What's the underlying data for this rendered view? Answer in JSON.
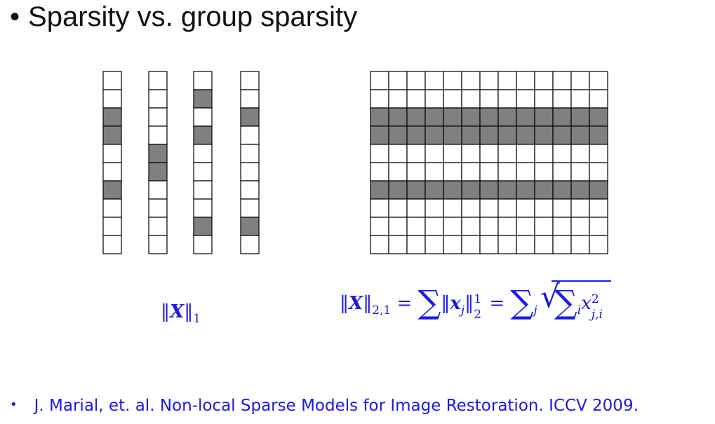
{
  "title": {
    "bullet": "•",
    "text": "Sparsity vs. group sparsity"
  },
  "diagram": {
    "columns": [
      {
        "rows": 10,
        "filled": [
          2,
          3,
          6
        ]
      },
      {
        "rows": 10,
        "filled": [
          4,
          5
        ]
      },
      {
        "rows": 10,
        "filled": [
          1,
          3,
          8
        ]
      },
      {
        "rows": 10,
        "filled": [
          2,
          8
        ]
      }
    ],
    "matrix": {
      "rows": 10,
      "cols": 13,
      "filled_rows": [
        2,
        3,
        6
      ]
    },
    "fill_color": "#808080",
    "line_color": "#000000",
    "empty_color": "#ffffff"
  },
  "formulas": {
    "l1": {
      "norm_open": "‖",
      "var": "X",
      "norm_close": "‖",
      "sub": "1"
    },
    "l21": {
      "norm_open": "‖",
      "var": "X",
      "norm_close": "‖",
      "sub": "2,1",
      "eq1": "=",
      "sum1": "∑",
      "xj_open": "‖",
      "xj_var": "x",
      "xj_sub": "j",
      "xj_close": "‖",
      "xj_sup": "1",
      "xj_sub2": "2",
      "eq2": "=",
      "sum2": "∑",
      "sum2_sub": "j",
      "sum3": "∑",
      "sum3_sub": "i",
      "inner_var": "x",
      "inner_sup": "2",
      "inner_sub": "j,i"
    }
  },
  "reference": {
    "bullet": "•",
    "text": "J. Marial, et. al. Non-local Sparse Models for Image Restoration. ICCV 2009."
  },
  "accent_color": "#1a1ae6"
}
